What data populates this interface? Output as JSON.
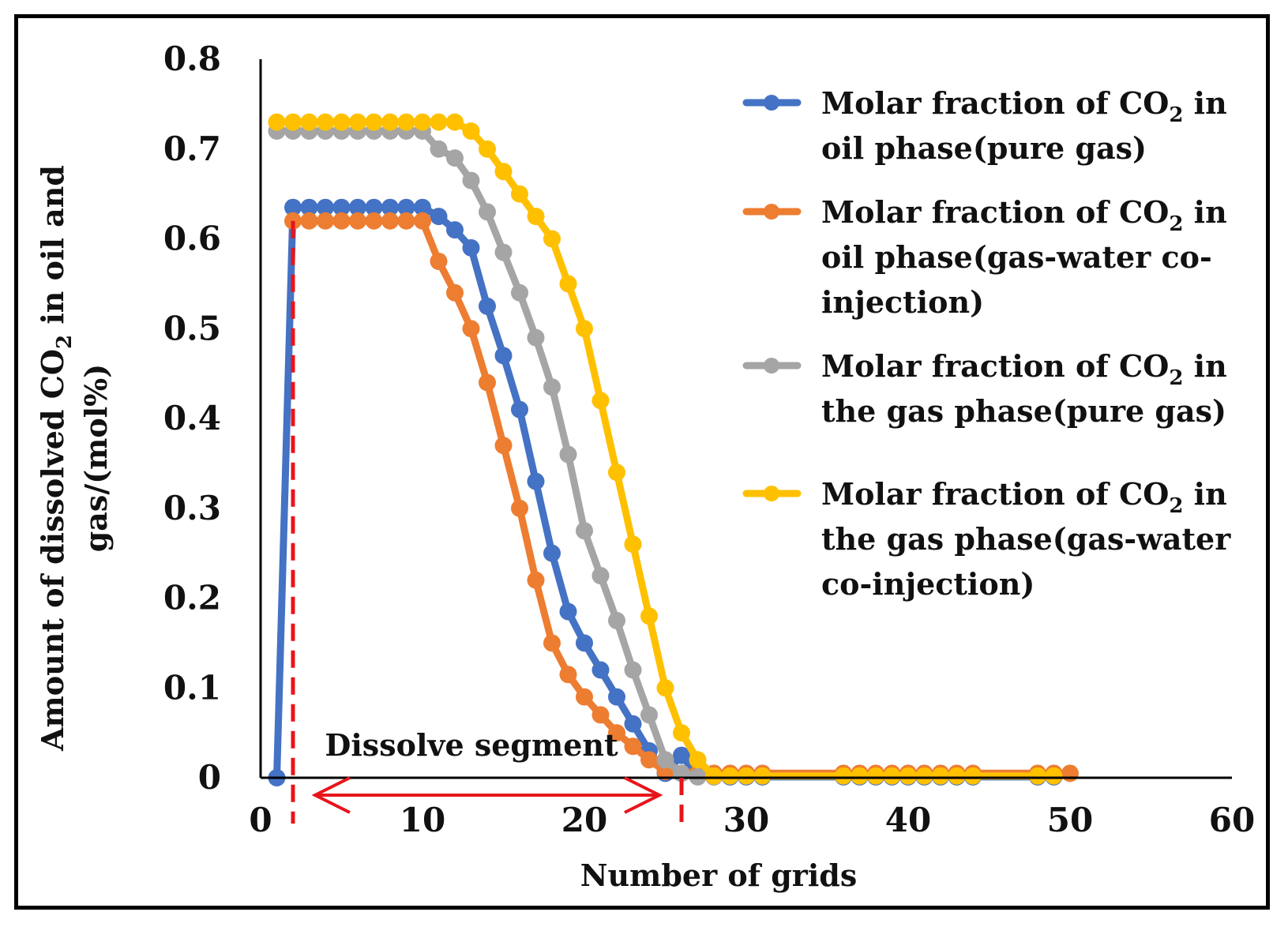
{
  "chart_data": {
    "type": "line",
    "title": "",
    "xlabel": "Number of grids",
    "ylabel": {
      "line1_pre": "Amount of dissolved CO",
      "line1_sub": "2",
      "line1_post": " in oil and",
      "line2": "gas/(mol%)"
    },
    "xlim": [
      0,
      60
    ],
    "ylim": [
      0,
      0.8
    ],
    "x_ticks": [
      "0",
      "10",
      "20",
      "30",
      "40",
      "50",
      "60"
    ],
    "y_ticks": [
      "0",
      "0.1",
      "0.2",
      "0.3",
      "0.4",
      "0.5",
      "0.6",
      "0.7",
      "0.8"
    ],
    "grid": false,
    "legend_position": "right",
    "series": [
      {
        "name": "Molar fraction of CO2 in oil phase(pure gas)",
        "legend_lines": [
          {
            "pre": "Molar fraction of CO",
            "sub": "2",
            "post": " in"
          },
          {
            "pre": "oil phase(pure gas)"
          }
        ],
        "color": "#4472C4",
        "x": [
          1,
          2,
          3,
          4,
          5,
          6,
          7,
          8,
          9,
          10,
          11,
          12,
          13,
          14,
          15,
          16,
          17,
          18,
          19,
          20,
          21,
          22,
          23,
          24,
          25,
          26,
          27,
          28,
          29,
          30,
          31,
          36,
          37,
          38,
          39,
          40,
          41,
          42,
          43,
          44,
          48,
          49
        ],
        "y": [
          0,
          0.635,
          0.635,
          0.635,
          0.635,
          0.635,
          0.635,
          0.635,
          0.635,
          0.635,
          0.625,
          0.61,
          0.59,
          0.525,
          0.47,
          0.41,
          0.33,
          0.25,
          0.185,
          0.15,
          0.12,
          0.09,
          0.06,
          0.03,
          0.005,
          0.025,
          0.002,
          0.001,
          0.001,
          0.001,
          0.001,
          0.001,
          0.001,
          0.001,
          0.001,
          0.001,
          0.001,
          0.001,
          0.001,
          0.001,
          0.001,
          0.001
        ]
      },
      {
        "name": "Molar fraction of CO2 in oil phase(gas-water co-injection)",
        "legend_lines": [
          {
            "pre": "Molar fraction of CO",
            "sub": "2",
            "post": " in"
          },
          {
            "pre": "oil phase(gas-water co-"
          },
          {
            "pre": "injection)"
          }
        ],
        "color": "#ED7D31",
        "x": [
          2,
          3,
          4,
          5,
          6,
          7,
          8,
          9,
          10,
          11,
          12,
          13,
          14,
          15,
          16,
          17,
          18,
          19,
          20,
          21,
          22,
          23,
          24,
          25,
          26,
          27,
          28,
          29,
          30,
          31,
          36,
          37,
          38,
          39,
          40,
          41,
          42,
          43,
          44,
          48,
          49,
          50
        ],
        "y": [
          0.62,
          0.62,
          0.62,
          0.62,
          0.62,
          0.62,
          0.62,
          0.62,
          0.62,
          0.575,
          0.54,
          0.5,
          0.44,
          0.37,
          0.3,
          0.22,
          0.15,
          0.115,
          0.09,
          0.07,
          0.05,
          0.035,
          0.02,
          0.007,
          0.005,
          0.005,
          0.005,
          0.005,
          0.005,
          0.005,
          0.005,
          0.005,
          0.005,
          0.005,
          0.005,
          0.005,
          0.005,
          0.005,
          0.005,
          0.005,
          0.005,
          0.005
        ]
      },
      {
        "name": "Molar fraction of CO2 in the gas phase(pure gas)",
        "legend_lines": [
          {
            "pre": "Molar fraction of CO",
            "sub": "2",
            "post": " in"
          },
          {
            "pre": "the gas phase(pure gas)"
          }
        ],
        "color": "#A5A5A5",
        "x": [
          1,
          2,
          3,
          4,
          5,
          6,
          7,
          8,
          9,
          10,
          11,
          12,
          13,
          14,
          15,
          16,
          17,
          18,
          19,
          20,
          21,
          22,
          23,
          24,
          25,
          26,
          27,
          28
        ],
        "y": [
          0.72,
          0.72,
          0.72,
          0.72,
          0.72,
          0.72,
          0.72,
          0.72,
          0.72,
          0.72,
          0.7,
          0.69,
          0.665,
          0.63,
          0.585,
          0.54,
          0.49,
          0.435,
          0.36,
          0.275,
          0.225,
          0.175,
          0.12,
          0.07,
          0.02,
          0.005,
          0.001,
          0.001
        ]
      },
      {
        "name": "Molar fraction of CO2 in the gas phase(gas-water co-injection)",
        "legend_lines": [
          {
            "pre": "Molar fraction of CO",
            "sub": "2",
            "post": " in"
          },
          {
            "pre": "the gas phase(gas-water"
          },
          {
            "pre": "co-injection)"
          }
        ],
        "color": "#FFC000",
        "x": [
          1,
          2,
          3,
          4,
          5,
          6,
          7,
          8,
          9,
          10,
          11,
          12,
          13,
          14,
          15,
          16,
          17,
          18,
          19,
          20,
          21,
          22,
          23,
          24,
          25,
          26,
          27,
          28,
          29,
          30,
          31,
          36,
          37,
          38,
          39,
          40,
          41,
          42,
          43,
          44,
          48,
          49
        ],
        "y": [
          0.73,
          0.73,
          0.73,
          0.73,
          0.73,
          0.73,
          0.73,
          0.73,
          0.73,
          0.73,
          0.73,
          0.73,
          0.72,
          0.7,
          0.675,
          0.65,
          0.625,
          0.6,
          0.55,
          0.5,
          0.42,
          0.34,
          0.26,
          0.18,
          0.1,
          0.05,
          0.02,
          0.002,
          0.002,
          0.002,
          0.002,
          0.002,
          0.002,
          0.002,
          0.002,
          0.002,
          0.002,
          0.002,
          0.002,
          0.002,
          0.002,
          0.002
        ]
      }
    ],
    "annotations": {
      "segment_label": "Dissolve segment",
      "segment_start_x": 2,
      "segment_end_x": 26,
      "marker_color": "#E8141B"
    }
  }
}
